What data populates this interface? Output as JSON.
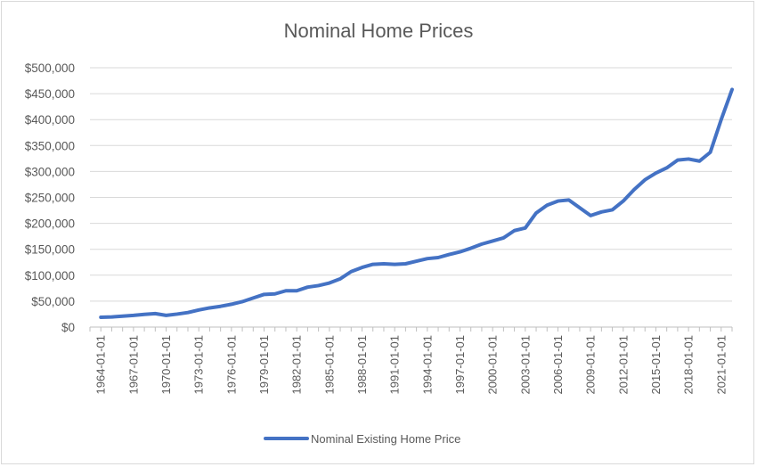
{
  "chart_data": {
    "type": "line",
    "title": "Nominal Home Prices",
    "xlabel": "",
    "ylabel": "",
    "ylim": [
      0,
      500000
    ],
    "y_ticks": [
      "$0",
      "$50,000",
      "$100,000",
      "$150,000",
      "$200,000",
      "$250,000",
      "$300,000",
      "$350,000",
      "$400,000",
      "$450,000",
      "$500,000"
    ],
    "x_tick_labels": [
      "1964-01-01",
      "1967-01-01",
      "1970-01-01",
      "1973-01-01",
      "1976-01-01",
      "1979-01-01",
      "1982-01-01",
      "1985-01-01",
      "1988-01-01",
      "1991-01-01",
      "1994-01-01",
      "1997-01-01",
      "2000-01-01",
      "2003-01-01",
      "2006-01-01",
      "2009-01-01",
      "2012-01-01",
      "2015-01-01",
      "2018-01-01",
      "2021-01-01"
    ],
    "legend_position": "bottom",
    "gridlines": true,
    "line_color": "#4472C4",
    "series": [
      {
        "name": "Nominal Existing Home Price",
        "x": [
          "1964-01-01",
          "1965-01-01",
          "1966-01-01",
          "1967-01-01",
          "1968-01-01",
          "1969-01-01",
          "1970-01-01",
          "1971-01-01",
          "1972-01-01",
          "1973-01-01",
          "1974-01-01",
          "1975-01-01",
          "1976-01-01",
          "1977-01-01",
          "1978-01-01",
          "1979-01-01",
          "1980-01-01",
          "1981-01-01",
          "1982-01-01",
          "1983-01-01",
          "1984-01-01",
          "1985-01-01",
          "1986-01-01",
          "1987-01-01",
          "1988-01-01",
          "1989-01-01",
          "1990-01-01",
          "1991-01-01",
          "1992-01-01",
          "1993-01-01",
          "1994-01-01",
          "1995-01-01",
          "1996-01-01",
          "1997-01-01",
          "1998-01-01",
          "1999-01-01",
          "2000-01-01",
          "2001-01-01",
          "2002-01-01",
          "2003-01-01",
          "2004-01-01",
          "2005-01-01",
          "2006-01-01",
          "2007-01-01",
          "2008-01-01",
          "2009-01-01",
          "2010-01-01",
          "2011-01-01",
          "2012-01-01",
          "2013-01-01",
          "2014-01-01",
          "2015-01-01",
          "2016-01-01",
          "2017-01-01",
          "2018-01-01",
          "2019-01-01",
          "2020-01-01",
          "2021-01-01",
          "2022-01-01"
        ],
        "values": [
          19000,
          19500,
          21000,
          22500,
          24500,
          26000,
          22500,
          25000,
          28000,
          33000,
          37000,
          40000,
          44000,
          49000,
          56000,
          63000,
          64000,
          70000,
          70000,
          77000,
          80000,
          85000,
          93000,
          107000,
          115000,
          121000,
          122000,
          121000,
          122000,
          127000,
          132000,
          134000,
          140000,
          145000,
          152000,
          160000,
          166000,
          172000,
          186000,
          191000,
          220000,
          235000,
          243000,
          245000,
          230000,
          215000,
          222000,
          226000,
          243000,
          265000,
          284000,
          297000,
          307000,
          322000,
          324000,
          320000,
          337000,
          400000,
          458000
        ]
      }
    ]
  }
}
